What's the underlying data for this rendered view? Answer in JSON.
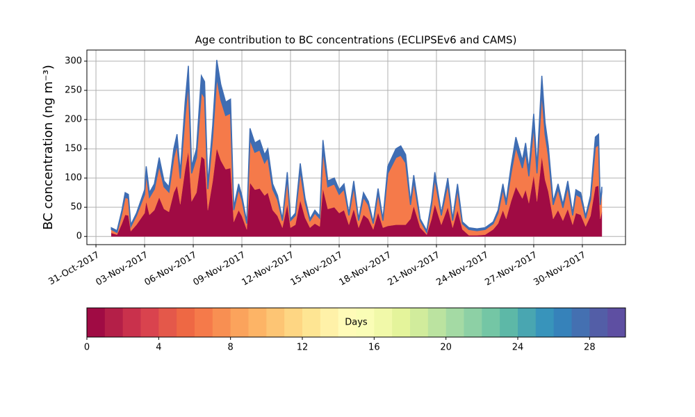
{
  "chart_data": [
    {
      "type": "stacked_area",
      "title": "Age contribution to BC concentrations (ECLIPSEv6 and CAMS)",
      "y_label": "BC concentration (ng m⁻³)",
      "x": [
        0.95,
        1.3,
        1.6,
        1.8,
        2.0,
        2.15,
        2.5,
        3.0,
        3.1,
        3.3,
        3.6,
        3.9,
        4.2,
        4.5,
        4.8,
        5.0,
        5.2,
        5.5,
        5.7,
        5.9,
        6.2,
        6.5,
        6.7,
        6.9,
        7.2,
        7.45,
        7.7,
        8.0,
        8.3,
        8.5,
        8.8,
        9.0,
        9.3,
        9.5,
        9.8,
        10.1,
        10.4,
        10.6,
        10.9,
        11.2,
        11.5,
        11.8,
        12.0,
        12.3,
        12.6,
        12.9,
        13.2,
        13.5,
        13.8,
        14.0,
        14.3,
        14.7,
        15.0,
        15.3,
        15.6,
        15.9,
        16.2,
        16.5,
        16.8,
        17.1,
        17.4,
        17.7,
        18.0,
        18.5,
        18.8,
        19.1,
        19.4,
        19.6,
        20.0,
        20.4,
        20.7,
        20.9,
        21.3,
        21.7,
        22.0,
        22.3,
        22.6,
        23.0,
        23.5,
        24.0,
        24.5,
        24.8,
        25.1,
        25.3,
        25.6,
        25.9,
        26.3,
        26.5,
        26.7,
        27.0,
        27.2,
        27.5,
        27.7,
        27.9,
        28.2,
        28.5,
        28.8,
        29.1,
        29.4,
        29.6,
        29.9,
        30.2,
        30.5,
        30.8,
        31.0,
        31.1,
        31.2
      ],
      "series": [
        {
          "color": "#a00b44",
          "values": [
            6,
            3,
            22,
            37,
            36,
            9,
            20,
            40,
            60,
            37,
            45,
            67,
            47,
            42,
            75,
            87,
            55,
            115,
            146,
            60,
            75,
            137,
            132,
            45,
            95,
            151,
            130,
            115,
            117,
            25,
            45,
            35,
            12,
            92,
            80,
            82,
            70,
            75,
            45,
            35,
            15,
            55,
            15,
            20,
            62,
            32,
            15,
            22,
            17,
            82,
            47,
            50,
            40,
            45,
            20,
            47,
            15,
            37,
            30,
            12,
            41,
            15,
            18,
            20,
            20,
            20,
            30,
            52,
            15,
            3,
            30,
            55,
            20,
            50,
            15,
            45,
            12,
            2,
            2,
            3,
            12,
            22,
            45,
            30,
            60,
            85,
            65,
            80,
            57,
            105,
            60,
            137,
            97,
            77,
            30,
            45,
            27,
            47,
            20,
            40,
            37,
            17,
            35,
            85,
            87,
            30,
            42
          ]
        },
        {
          "color": "#f57a4a",
          "values": [
            6,
            4,
            18,
            30,
            29,
            8,
            16,
            32,
            48,
            30,
            36,
            54,
            38,
            34,
            60,
            70,
            44,
            92,
            117,
            48,
            60,
            110,
            106,
            36,
            76,
            121,
            104,
            92,
            94,
            20,
            36,
            28,
            10,
            74,
            64,
            66,
            56,
            60,
            36,
            28,
            12,
            44,
            12,
            16,
            50,
            26,
            12,
            18,
            14,
            66,
            38,
            40,
            32,
            36,
            16,
            38,
            12,
            30,
            24,
            10,
            33,
            12,
            90,
            115,
            119,
            106,
            24,
            42,
            12,
            4,
            24,
            44,
            16,
            40,
            12,
            36,
            10,
            10,
            8,
            9,
            10,
            18,
            36,
            24,
            48,
            68,
            52,
            64,
            46,
            84,
            48,
            110,
            78,
            62,
            24,
            36,
            22,
            38,
            16,
            32,
            30,
            14,
            28,
            68,
            70,
            24,
            34
          ]
        },
        {
          "color": "#3f6db3",
          "values": [
            3,
            3,
            5,
            8,
            7,
            3,
            4,
            8,
            12,
            8,
            9,
            14,
            10,
            9,
            15,
            18,
            11,
            23,
            29,
            12,
            15,
            28,
            27,
            9,
            19,
            30,
            26,
            23,
            24,
            5,
            9,
            7,
            3,
            19,
            16,
            17,
            14,
            15,
            9,
            7,
            3,
            11,
            3,
            4,
            13,
            7,
            3,
            5,
            4,
            17,
            10,
            10,
            8,
            9,
            4,
            10,
            3,
            8,
            6,
            3,
            8,
            3,
            12,
            15,
            16,
            14,
            6,
            11,
            3,
            3,
            6,
            11,
            4,
            10,
            3,
            9,
            3,
            3,
            3,
            3,
            3,
            5,
            9,
            6,
            12,
            17,
            13,
            16,
            12,
            21,
            12,
            28,
            20,
            16,
            6,
            9,
            6,
            10,
            4,
            8,
            8,
            4,
            7,
            17,
            18,
            6,
            9
          ]
        }
      ],
      "xlim": [
        -0.56,
        32.66
      ],
      "xticks": [
        {
          "value": 0,
          "label": "31-Oct-2017"
        },
        {
          "value": 3,
          "label": "03-Nov-2017"
        },
        {
          "value": 6,
          "label": "06-Nov-2017"
        },
        {
          "value": 9,
          "label": "09-Nov-2017"
        },
        {
          "value": 12,
          "label": "12-Nov-2017"
        },
        {
          "value": 15,
          "label": "15-Nov-2017"
        },
        {
          "value": 18,
          "label": "18-Nov-2017"
        },
        {
          "value": 21,
          "label": "21-Nov-2017"
        },
        {
          "value": 24,
          "label": "24-Nov-2017"
        },
        {
          "value": 27,
          "label": "27-Nov-2017"
        },
        {
          "value": 30,
          "label": "30-Nov-2017"
        }
      ],
      "ylim": [
        -14,
        319
      ],
      "yticks": [
        0,
        50,
        100,
        150,
        200,
        250,
        300
      ],
      "grid": true
    },
    {
      "type": "colorbar",
      "label": "Days",
      "bins": [
        0,
        1,
        2,
        3,
        4,
        5,
        6,
        7,
        8,
        9,
        10,
        11,
        12,
        13,
        14,
        15,
        16,
        17,
        18,
        19,
        20,
        21,
        22,
        23,
        24,
        25,
        26,
        27,
        28,
        29,
        30
      ],
      "colors": [
        "#a00b44",
        "#b41f48",
        "#c9314c",
        "#d9434e",
        "#e4584a",
        "#ee6844",
        "#f57a4a",
        "#f88f52",
        "#fba35c",
        "#fdb466",
        "#fdc574",
        "#fed683",
        "#fee593",
        "#fff1a8",
        "#fffbb8",
        "#fafdb6",
        "#f1f9a9",
        "#e4f49b",
        "#d1ec9c",
        "#bbe3a0",
        "#a4daa4",
        "#8dd0a5",
        "#74c6a5",
        "#5db8a7",
        "#49a6b1",
        "#3894bb",
        "#3682ba",
        "#4470b1",
        "#535ea7",
        "#5e4fa2"
      ],
      "xlim": [
        0,
        30
      ],
      "xticks": [
        0,
        4,
        8,
        12,
        16,
        20,
        24,
        28
      ]
    }
  ]
}
